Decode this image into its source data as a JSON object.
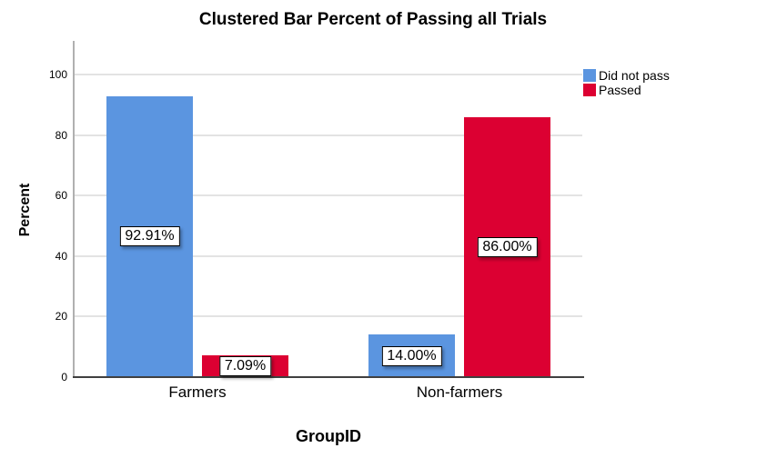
{
  "chart_data": {
    "type": "bar",
    "title": "Clustered Bar Percent of Passing all Trials",
    "xlabel": "GroupID",
    "ylabel": "Percent",
    "categories": [
      "Farmers",
      "Non-farmers"
    ],
    "series": [
      {
        "name": "Did not pass",
        "color": "#5B95E0",
        "values": [
          92.91,
          14.0
        ],
        "value_labels": [
          "92.91%",
          "14.00%"
        ]
      },
      {
        "name": "Passed",
        "color": "#DC0032",
        "values": [
          7.09,
          86.0
        ],
        "value_labels": [
          "7.09%",
          "86.00%"
        ]
      }
    ],
    "ylim": [
      0,
      100
    ],
    "yticks": [
      0,
      20,
      40,
      60,
      80,
      100
    ],
    "grid": true,
    "legend_position": "top-right",
    "legend_labels": [
      "Did not pass",
      "Passed"
    ]
  }
}
